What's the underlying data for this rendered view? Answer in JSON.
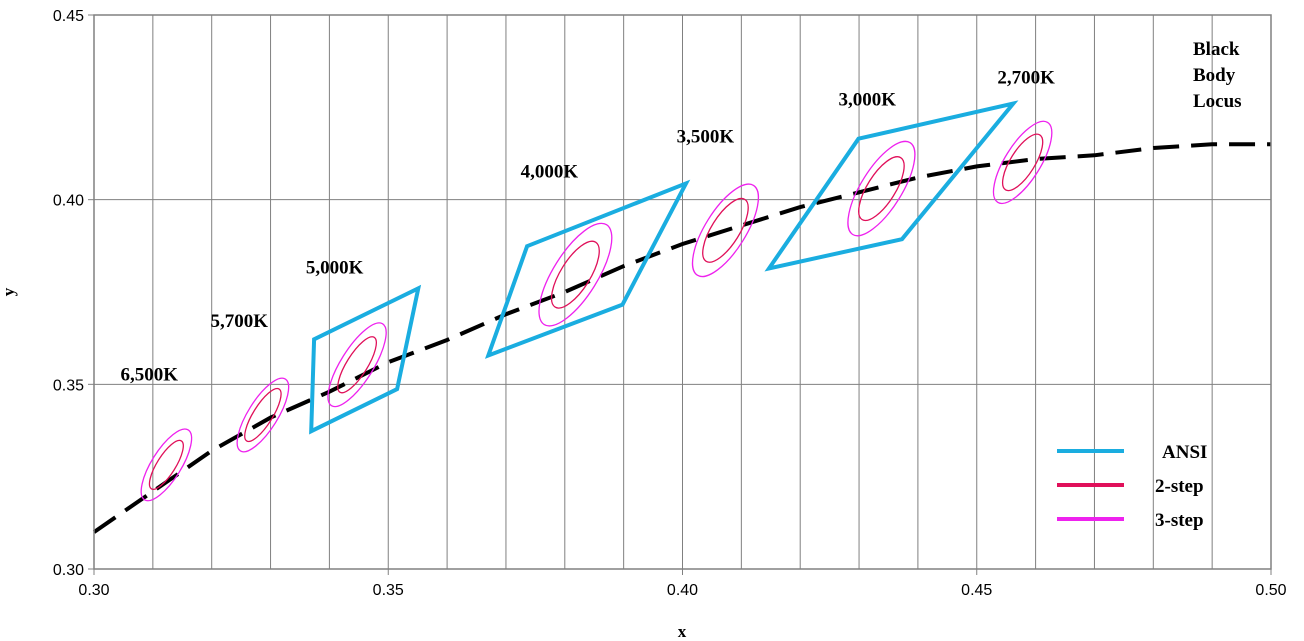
{
  "chart_data": {
    "type": "line",
    "xlabel": "x",
    "ylabel": "y",
    "xlim": [
      0.3,
      0.5
    ],
    "ylim": [
      0.3,
      0.45
    ],
    "x_ticks": [
      "0.30",
      "0.35",
      "0.40",
      "0.45",
      "0.50"
    ],
    "y_ticks": [
      "0.30",
      "0.35",
      "0.40",
      "0.45"
    ],
    "x_tick_values": [
      0.3,
      0.35,
      0.4,
      0.45,
      0.5
    ],
    "y_tick_values": [
      0.3,
      0.35,
      0.4,
      0.45
    ],
    "grid": {
      "vertical_step": 0.01,
      "horizontal_step": 0.05
    },
    "colors": {
      "ansi": "#1AADE0",
      "step2": "#E0105A",
      "step3": "#EE22EE",
      "locus": "#000000",
      "grid": "#808080"
    },
    "legend": {
      "placement": "bottom-right",
      "entries": [
        {
          "key": "ansi",
          "label": "ANSI"
        },
        {
          "key": "step2",
          "label": "2-step"
        },
        {
          "key": "step3",
          "label": "3-step"
        }
      ]
    },
    "locus": {
      "label_lines": [
        "Black",
        "Body",
        "Locus"
      ],
      "points": [
        [
          0.3,
          0.31
        ],
        [
          0.31,
          0.321
        ],
        [
          0.32,
          0.332
        ],
        [
          0.33,
          0.341
        ],
        [
          0.34,
          0.348
        ],
        [
          0.35,
          0.356
        ],
        [
          0.36,
          0.362
        ],
        [
          0.37,
          0.369
        ],
        [
          0.38,
          0.375
        ],
        [
          0.39,
          0.382
        ],
        [
          0.4,
          0.388
        ],
        [
          0.41,
          0.393
        ],
        [
          0.42,
          0.398
        ],
        [
          0.43,
          0.402
        ],
        [
          0.44,
          0.406
        ],
        [
          0.45,
          0.409
        ],
        [
          0.46,
          0.411
        ],
        [
          0.47,
          0.412
        ],
        [
          0.48,
          0.414
        ],
        [
          0.49,
          0.415
        ],
        [
          0.5,
          0.415
        ]
      ]
    },
    "ansi_quads": [
      {
        "cct": "5,000K",
        "points": [
          [
            0.3374,
            0.3622
          ],
          [
            0.3551,
            0.376
          ],
          [
            0.3515,
            0.3487
          ],
          [
            0.3369,
            0.3373
          ]
        ]
      },
      {
        "cct": "4,000K",
        "points": [
          [
            0.3736,
            0.3874
          ],
          [
            0.4006,
            0.4044
          ],
          [
            0.3898,
            0.3716
          ],
          [
            0.367,
            0.3578
          ]
        ]
      },
      {
        "cct": "3,000K",
        "points": [
          [
            0.4299,
            0.4165
          ],
          [
            0.4562,
            0.426
          ],
          [
            0.4373,
            0.3893
          ],
          [
            0.4147,
            0.3814
          ]
        ]
      }
    ],
    "ellipses": [
      {
        "cct": "6,500K",
        "center": [
          0.3123,
          0.3282
        ],
        "step2": [
          0.0025,
          0.0048
        ],
        "step3": [
          0.004,
          0.007
        ],
        "rotation": 58
      },
      {
        "cct": "5,700K",
        "center": [
          0.3287,
          0.3417
        ],
        "step2": [
          0.0026,
          0.0052
        ],
        "step3": [
          0.004,
          0.0072
        ],
        "rotation": 58
      },
      {
        "cct": "5,000K",
        "center": [
          0.3447,
          0.3553
        ],
        "step2": [
          0.0028,
          0.0055
        ],
        "step3": [
          0.0044,
          0.0082
        ],
        "rotation": 58
      },
      {
        "cct": "4,000K",
        "center": [
          0.3818,
          0.3797
        ],
        "step2": [
          0.004,
          0.0065
        ],
        "step3": [
          0.006,
          0.01
        ],
        "rotation": 58
      },
      {
        "cct": "3,500K",
        "center": [
          0.4073,
          0.3917
        ],
        "step2": [
          0.0038,
          0.0062
        ],
        "step3": [
          0.0055,
          0.009
        ],
        "rotation": 58
      },
      {
        "cct": "3,000K",
        "center": [
          0.4338,
          0.403
        ],
        "step2": [
          0.0038,
          0.0062
        ],
        "step3": [
          0.0055,
          0.0092
        ],
        "rotation": 58
      },
      {
        "cct": "2,700K",
        "center": [
          0.4578,
          0.4101
        ],
        "step2": [
          0.0033,
          0.0055
        ],
        "step3": [
          0.0048,
          0.008
        ],
        "rotation": 58
      }
    ],
    "cct_labels": [
      {
        "text": "6,500K",
        "x": 0.3045,
        "y": 0.351
      },
      {
        "text": "5,700K",
        "x": 0.3198,
        "y": 0.3655
      },
      {
        "text": "5,000K",
        "x": 0.336,
        "y": 0.38
      },
      {
        "text": "4,000K",
        "x": 0.3725,
        "y": 0.406
      },
      {
        "text": "3,500K",
        "x": 0.399,
        "y": 0.4155
      },
      {
        "text": "3,000K",
        "x": 0.4265,
        "y": 0.4255
      },
      {
        "text": "2,700K",
        "x": 0.4535,
        "y": 0.4315
      }
    ]
  }
}
